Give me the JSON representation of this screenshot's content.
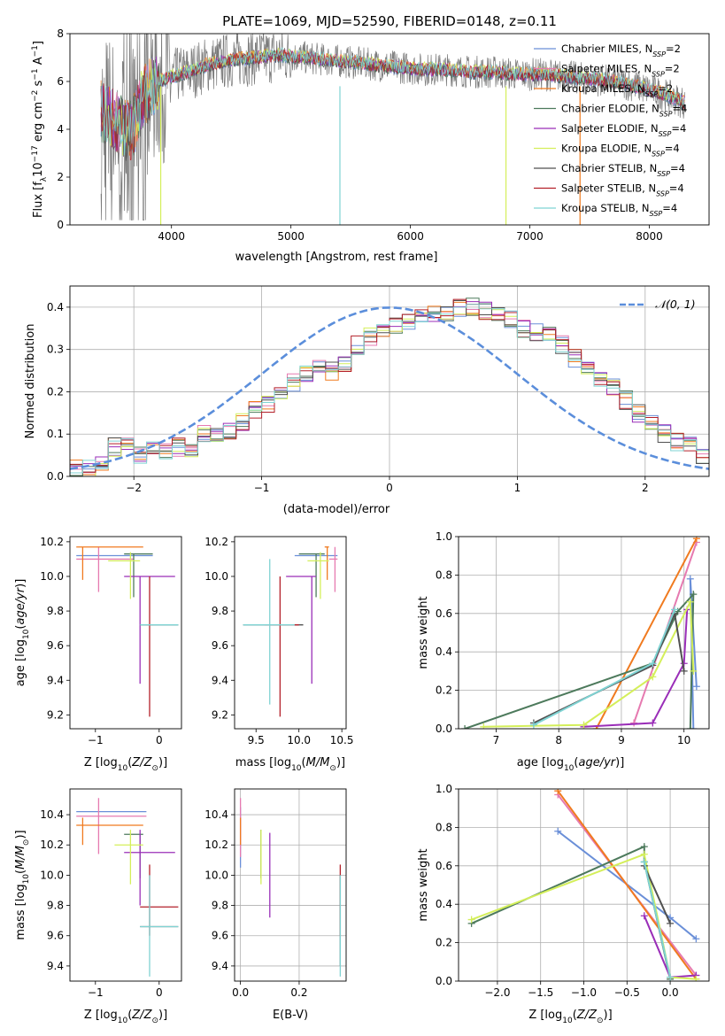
{
  "title": "PLATE=1069, MJD=52590, FIBERID=0148, z=0.11",
  "colors": {
    "chabrier_miles": "#6a8fd8",
    "salpeter_miles": "#e67ab0",
    "kroupa_miles": "#f07a1f",
    "chabrier_elodie": "#4d7a5c",
    "salpeter_elodie": "#9a2eb8",
    "kroupa_elodie": "#d4ef5a",
    "chabrier_stelib": "#505050",
    "salpeter_stelib": "#b3202a",
    "kroupa_stelib": "#7fd3d3",
    "gaussian": "#5b8edb",
    "grid": "#b0b0b0"
  },
  "chart_data": [
    {
      "id": "spectrum",
      "type": "line",
      "title": "PLATE=1069, MJD=52590, FIBERID=0148, z=0.11",
      "xlabel": "wavelength [Angstrom, rest frame]",
      "ylabel": "Flux [f_λ 10^-17 erg cm^-2 s^-1 A^-1]",
      "xlim": [
        3150,
        8500
      ],
      "ylim": [
        0,
        8
      ],
      "xticks": [
        "4000",
        "5000",
        "6000",
        "7000",
        "8000"
      ],
      "yticks": [
        "0",
        "2",
        "4",
        "6",
        "8"
      ],
      "grid": false,
      "legend_position": "right",
      "legend": [
        {
          "label": "Chabrier MILES, N",
          "sub": "SSP",
          "tail": "=2"
        },
        {
          "label": "Salpeter MILES, N",
          "sub": "SSP",
          "tail": "=2"
        },
        {
          "label": "Kroupa MILES, N",
          "sub": "SSP",
          "tail": "=2"
        },
        {
          "label": "Chabrier ELODIE, N",
          "sub": "SSP",
          "tail": "=4"
        },
        {
          "label": "Salpeter ELODIE, N",
          "sub": "SSP",
          "tail": "=4"
        },
        {
          "label": "Kroupa ELODIE, N",
          "sub": "SSP",
          "tail": "=4"
        },
        {
          "label": "Chabrier STELIB, N",
          "sub": "SSP",
          "tail": "=4"
        },
        {
          "label": "Salpeter STELIB, N",
          "sub": "SSP",
          "tail": "=4"
        },
        {
          "label": "Kroupa STELIB, N",
          "sub": "SSP",
          "tail": "=4"
        }
      ],
      "model_continuum": {
        "x": [
          3410,
          3500,
          3600,
          3650,
          3700,
          3750,
          3850,
          4000,
          4150,
          4300,
          4500,
          4700,
          4900,
          5100,
          5300,
          5500,
          5700,
          5900,
          6100,
          6300,
          6500,
          6700,
          6900,
          7100,
          7300,
          7500,
          7700,
          7900,
          8100,
          8300
        ],
        "y": [
          4.8,
          4.5,
          4.1,
          3.9,
          4.4,
          5.2,
          5.9,
          6.2,
          6.4,
          6.7,
          6.9,
          7.0,
          7.1,
          7.0,
          6.9,
          6.8,
          6.7,
          6.6,
          6.5,
          6.5,
          6.4,
          6.4,
          6.3,
          6.3,
          6.2,
          6.1,
          6.0,
          5.8,
          5.5,
          5.1
        ]
      },
      "observed_drop_to_zero_x": [
        3910,
        5410,
        6800,
        7420
      ]
    },
    {
      "id": "residual_histogram",
      "type": "bar",
      "xlabel": "(data-model)/error",
      "ylabel": "Normed distribution",
      "xlim": [
        -2.5,
        2.5
      ],
      "ylim": [
        0,
        0.45
      ],
      "xticks": [
        "−2",
        "−1",
        "0",
        "1",
        "2"
      ],
      "yticks": [
        "0.0",
        "0.1",
        "0.2",
        "0.3",
        "0.4"
      ],
      "grid": true,
      "legend_position": "top-right",
      "legend_label": "𝒩(0, 1)",
      "bin_width": 0.1,
      "mean_histogram": [
        0.02,
        0.02,
        0.03,
        0.07,
        0.07,
        0.05,
        0.06,
        0.06,
        0.07,
        0.06,
        0.1,
        0.1,
        0.11,
        0.13,
        0.16,
        0.17,
        0.19,
        0.22,
        0.24,
        0.26,
        0.25,
        0.27,
        0.31,
        0.33,
        0.34,
        0.36,
        0.37,
        0.38,
        0.38,
        0.39,
        0.4,
        0.4,
        0.39,
        0.38,
        0.37,
        0.35,
        0.34,
        0.33,
        0.31,
        0.28,
        0.26,
        0.23,
        0.21,
        0.18,
        0.15,
        0.13,
        0.1,
        0.08,
        0.07,
        0.05
      ]
    },
    {
      "id": "age_vs_Z",
      "type": "scatter",
      "xlabel": "Z [log10(Z/Z⊙)]",
      "ylabel": "age [log10(age/yr)]",
      "xlim": [
        -1.4,
        0.35
      ],
      "ylim": [
        9.12,
        10.23
      ],
      "xticks": [
        "−1",
        "0"
      ],
      "yticks": [
        "9.2",
        "9.4",
        "9.6",
        "9.8",
        "10.0",
        "10.2"
      ],
      "grid": false
    },
    {
      "id": "age_vs_mass",
      "type": "scatter",
      "xlabel": "mass [log10(M/M⊙)]",
      "ylabel": "",
      "xlim": [
        9.25,
        10.55
      ],
      "ylim": [
        9.12,
        10.23
      ],
      "xticks": [
        "9.5",
        "10.0",
        "10.5"
      ],
      "yticks": [
        "9.2",
        "9.4",
        "9.6",
        "9.8",
        "10.0",
        "10.2"
      ],
      "grid": false
    },
    {
      "id": "massweight_vs_age",
      "type": "line",
      "xlabel": "age  [log10(age/yr)]",
      "ylabel": "mass weight",
      "xlim": [
        6.4,
        10.4
      ],
      "ylim": [
        0,
        1.0
      ],
      "xticks": [
        "7",
        "8",
        "9",
        "10"
      ],
      "yticks": [
        "0.0",
        "0.2",
        "0.4",
        "0.6",
        "0.8",
        "1.0"
      ],
      "grid": true,
      "series": [
        {
          "key": "chabrier_miles",
          "x": [
            10.2,
            10.1,
            10.15
          ],
          "y": [
            0.22,
            0.78,
            0.0
          ]
        },
        {
          "key": "salpeter_miles",
          "x": [
            9.2,
            10.2
          ],
          "y": [
            0.03,
            0.97
          ]
        },
        {
          "key": "kroupa_miles",
          "x": [
            8.6,
            10.2
          ],
          "y": [
            0.0,
            0.99
          ]
        },
        {
          "key": "chabrier_elodie",
          "x": [
            6.5,
            9.5,
            9.9,
            10.15,
            10.1
          ],
          "y": [
            0.0,
            0.34,
            0.61,
            0.7,
            0.0
          ]
        },
        {
          "key": "salpeter_elodie",
          "x": [
            8.4,
            9.5,
            10.0,
            10.05
          ],
          "y": [
            0.01,
            0.03,
            0.34,
            0.62
          ]
        },
        {
          "key": "kroupa_elodie",
          "x": [
            6.8,
            8.4,
            9.5,
            10.1,
            10.15
          ],
          "y": [
            0.01,
            0.02,
            0.27,
            0.66,
            0.3
          ]
        },
        {
          "key": "chabrier_stelib",
          "x": [
            7.6,
            9.5,
            9.85,
            10.0
          ],
          "y": [
            0.03,
            0.33,
            0.6,
            0.3
          ]
        },
        {
          "key": "kroupa_stelib",
          "x": [
            7.6,
            9.5,
            9.85
          ],
          "y": [
            0.02,
            0.34,
            0.62
          ]
        }
      ]
    },
    {
      "id": "mass_vs_Z",
      "type": "scatter",
      "xlabel": "Z [log10(Z/Z⊙)]",
      "ylabel": "mass [log10(M/M⊙)]",
      "xlim": [
        -1.4,
        0.35
      ],
      "ylim": [
        9.3,
        10.57
      ],
      "xticks": [
        "−1",
        "0"
      ],
      "yticks": [
        "9.4",
        "9.6",
        "9.8",
        "10.0",
        "10.2",
        "10.4"
      ],
      "grid": false
    },
    {
      "id": "mass_vs_ebv",
      "type": "scatter",
      "xlabel": "E(B-V)",
      "ylabel": "",
      "xlim": [
        -0.02,
        0.36
      ],
      "ylim": [
        9.3,
        10.57
      ],
      "xticks": [
        "0.0",
        "0.2"
      ],
      "yticks": [
        "9.4",
        "9.6",
        "9.8",
        "10.0",
        "10.2",
        "10.4"
      ],
      "grid": true
    },
    {
      "id": "massweight_vs_Z",
      "type": "line",
      "xlabel": "Z [log10(Z/Z⊙)]",
      "ylabel": "mass weight",
      "xlim": [
        -2.45,
        0.45
      ],
      "ylim": [
        0,
        1.0
      ],
      "xticks": [
        "−2.0",
        "−1.5",
        "−1.0",
        "−0.5",
        "0.0"
      ],
      "yticks": [
        "0.0",
        "0.2",
        "0.4",
        "0.6",
        "0.8",
        "1.0"
      ],
      "grid": true,
      "series": [
        {
          "key": "chabrier_miles",
          "x": [
            -1.3,
            0.0,
            0.3
          ],
          "y": [
            0.78,
            0.33,
            0.22
          ]
        },
        {
          "key": "salpeter_miles",
          "x": [
            -1.3,
            0.3
          ],
          "y": [
            0.97,
            0.03
          ]
        },
        {
          "key": "kroupa_miles",
          "x": [
            -1.3,
            0.3
          ],
          "y": [
            0.99,
            0.01
          ]
        },
        {
          "key": "chabrier_elodie",
          "x": [
            -2.3,
            -0.3,
            -0.3,
            0.0
          ],
          "y": [
            0.3,
            0.7,
            0.62,
            0.01
          ]
        },
        {
          "key": "salpeter_elodie",
          "x": [
            -0.3,
            0.0,
            0.3
          ],
          "y": [
            0.34,
            0.02,
            0.03
          ]
        },
        {
          "key": "kroupa_elodie",
          "x": [
            -2.3,
            -0.3,
            0.0,
            0.3
          ],
          "y": [
            0.32,
            0.66,
            0.02,
            0.01
          ]
        },
        {
          "key": "chabrier_stelib",
          "x": [
            -0.3,
            0.0
          ],
          "y": [
            0.6,
            0.3
          ]
        },
        {
          "key": "kroupa_stelib",
          "x": [
            -0.3,
            0.0
          ],
          "y": [
            0.62,
            0.02
          ]
        }
      ]
    }
  ],
  "error_bars": {
    "age_vs_Z": [
      {
        "key": "chabrier_miles",
        "x": -0.7,
        "y": 10.12,
        "xlo": -1.3,
        "xhi": -0.1,
        "ylo": 10.12,
        "yhi": 10.12
      },
      {
        "key": "salpeter_miles",
        "x": -0.95,
        "y": 10.1,
        "xlo": -1.3,
        "xhi": -0.4,
        "ylo": 9.91,
        "yhi": 10.17
      },
      {
        "key": "kroupa_miles",
        "x": -1.2,
        "y": 10.17,
        "xlo": -1.3,
        "xhi": -0.25,
        "ylo": 9.98,
        "yhi": 10.17
      },
      {
        "key": "chabrier_elodie",
        "x": -0.4,
        "y": 10.13,
        "xlo": -0.55,
        "xhi": -0.1,
        "ylo": 9.88,
        "yhi": 10.13
      },
      {
        "key": "salpeter_elodie",
        "x": -0.3,
        "y": 10.0,
        "xlo": -0.55,
        "xhi": 0.25,
        "ylo": 9.38,
        "yhi": 10.0
      },
      {
        "key": "kroupa_elodie",
        "x": -0.45,
        "y": 10.09,
        "xlo": -0.8,
        "xhi": -0.3,
        "ylo": 9.87,
        "yhi": 10.14
      },
      {
        "key": "chabrier_stelib",
        "x": -0.2,
        "y": 9.72,
        "xlo": -0.3,
        "xhi": 0.3,
        "ylo": 9.72,
        "yhi": 9.72
      },
      {
        "key": "salpeter_stelib",
        "x": -0.15,
        "y": 9.72,
        "xlo": -0.2,
        "xhi": -0.1,
        "ylo": 9.19,
        "yhi": 10.0
      },
      {
        "key": "kroupa_stelib",
        "x": -0.1,
        "y": 9.72,
        "xlo": -0.3,
        "xhi": 0.3,
        "ylo": 9.72,
        "yhi": 9.72
      }
    ],
    "age_vs_mass": [
      {
        "key": "chabrier_miles",
        "x": 10.2,
        "y": 10.12,
        "xlo": 9.95,
        "xhi": 10.45,
        "ylo": 10.12,
        "yhi": 10.12
      },
      {
        "key": "salpeter_miles",
        "x": 10.42,
        "y": 10.1,
        "xlo": 10.35,
        "xhi": 10.45,
        "ylo": 9.91,
        "yhi": 10.17
      },
      {
        "key": "kroupa_miles",
        "x": 10.33,
        "y": 10.17,
        "xlo": 10.3,
        "xhi": 10.35,
        "ylo": 9.98,
        "yhi": 10.17
      },
      {
        "key": "chabrier_elodie",
        "x": 10.2,
        "y": 10.13,
        "xlo": 10.0,
        "xhi": 10.3,
        "ylo": 9.88,
        "yhi": 10.13
      },
      {
        "key": "salpeter_elodie",
        "x": 10.15,
        "y": 10.0,
        "xlo": 9.85,
        "xhi": 10.2,
        "ylo": 9.38,
        "yhi": 10.0
      },
      {
        "key": "kroupa_elodie",
        "x": 10.25,
        "y": 10.09,
        "xlo": 10.1,
        "xhi": 10.35,
        "ylo": 9.87,
        "yhi": 10.14
      },
      {
        "key": "chabrier_stelib",
        "x": 9.7,
        "y": 9.72,
        "xlo": 9.35,
        "xhi": 10.05,
        "ylo": 9.72,
        "yhi": 9.72
      },
      {
        "key": "salpeter_stelib",
        "x": 9.78,
        "y": 9.72,
        "xlo": 9.6,
        "xhi": 10.0,
        "ylo": 9.19,
        "yhi": 10.0
      },
      {
        "key": "kroupa_stelib",
        "x": 9.66,
        "y": 9.72,
        "xlo": 9.35,
        "xhi": 9.95,
        "ylo": 9.26,
        "yhi": 10.1
      }
    ],
    "mass_vs_Z": [
      {
        "key": "chabrier_miles",
        "x": -0.7,
        "y": 10.42,
        "xlo": -1.3,
        "xhi": -0.2,
        "ylo": 10.42,
        "yhi": 10.42
      },
      {
        "key": "salpeter_miles",
        "x": -0.95,
        "y": 10.39,
        "xlo": -1.3,
        "xhi": -0.2,
        "ylo": 10.14,
        "yhi": 10.51
      },
      {
        "key": "kroupa_miles",
        "x": -1.2,
        "y": 10.33,
        "xlo": -1.3,
        "xhi": -0.25,
        "ylo": 10.2,
        "yhi": 10.38
      },
      {
        "key": "chabrier_elodie",
        "x": -0.3,
        "y": 10.27,
        "xlo": -0.55,
        "xhi": -0.25,
        "ylo": 9.98,
        "yhi": 10.27
      },
      {
        "key": "salpeter_elodie",
        "x": -0.3,
        "y": 10.15,
        "xlo": -0.55,
        "xhi": 0.25,
        "ylo": 9.8,
        "yhi": 10.3
      },
      {
        "key": "kroupa_elodie",
        "x": -0.45,
        "y": 10.2,
        "xlo": -0.7,
        "xhi": -0.25,
        "ylo": 9.94,
        "yhi": 10.3
      },
      {
        "key": "chabrier_stelib",
        "x": 0.0,
        "y": 9.66,
        "xlo": -0.3,
        "xhi": 0.3,
        "ylo": 9.66,
        "yhi": 9.66
      },
      {
        "key": "salpeter_stelib",
        "x": -0.15,
        "y": 9.79,
        "xlo": -0.3,
        "xhi": 0.3,
        "ylo": 9.6,
        "yhi": 10.07
      },
      {
        "key": "kroupa_stelib",
        "x": -0.15,
        "y": 9.66,
        "xlo": -0.3,
        "xhi": 0.3,
        "ylo": 9.33,
        "yhi": 10.0
      }
    ],
    "mass_vs_ebv": [
      {
        "key": "chabrier_miles",
        "x": 0.0,
        "y": 10.2,
        "xlo": 0.0,
        "xhi": 0.0,
        "ylo": 10.05,
        "yhi": 10.45
      },
      {
        "key": "salpeter_miles",
        "x": 0.0,
        "y": 10.3,
        "xlo": 0.0,
        "xhi": 0.0,
        "ylo": 10.12,
        "yhi": 10.51
      },
      {
        "key": "kroupa_miles",
        "x": 0.0,
        "y": 10.25,
        "xlo": 0.0,
        "xhi": 0.0,
        "ylo": 10.2,
        "yhi": 10.38
      },
      {
        "key": "chabrier_elodie",
        "x": 0.07,
        "y": 10.27,
        "xlo": 0.07,
        "xhi": 0.07,
        "ylo": 9.98,
        "yhi": 10.3
      },
      {
        "key": "salpeter_elodie",
        "x": 0.1,
        "y": 10.0,
        "xlo": 0.1,
        "xhi": 0.1,
        "ylo": 9.72,
        "yhi": 10.28
      },
      {
        "key": "kroupa_elodie",
        "x": 0.07,
        "y": 10.1,
        "xlo": 0.07,
        "xhi": 0.07,
        "ylo": 9.94,
        "yhi": 10.3
      },
      {
        "key": "chabrier_stelib",
        "x": 0.34,
        "y": 9.66,
        "xlo": 0.34,
        "xhi": 0.34,
        "ylo": 9.4,
        "yhi": 10.0
      },
      {
        "key": "salpeter_stelib",
        "x": 0.34,
        "y": 9.79,
        "xlo": 0.34,
        "xhi": 0.34,
        "ylo": 9.6,
        "yhi": 10.07
      },
      {
        "key": "kroupa_stelib",
        "x": 0.34,
        "y": 9.66,
        "xlo": 0.34,
        "xhi": 0.34,
        "ylo": 9.33,
        "yhi": 10.0
      }
    ]
  }
}
